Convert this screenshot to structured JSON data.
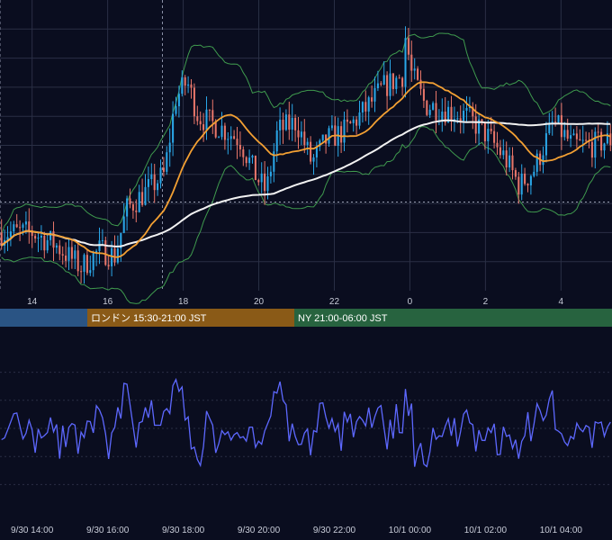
{
  "colors": {
    "background": "#0a0d1f",
    "grid": "#2a2f45",
    "candle_up": "#2aa7e8",
    "candle_down": "#e8766a",
    "ma_short": "#f3a033",
    "ma_long": "#f2f2f2",
    "bollinger": "#3f9a4e",
    "oscillator": "#5d68ff",
    "session_tokyo": "#2a5484",
    "session_london": "#8a5a17",
    "session_ny": "#27633f"
  },
  "sessions": [
    {
      "name": "tokyo",
      "label": ""
    },
    {
      "name": "london",
      "label": "ロンドン 15:30-21:00 JST"
    },
    {
      "name": "ny",
      "label": "NY 21:00-06:00 JST"
    }
  ],
  "chart_data": [
    {
      "type": "candlestick",
      "panel": "price",
      "x_tick_labels": [
        "14",
        "16",
        "18",
        "20",
        "22",
        "0",
        "2",
        "4"
      ],
      "x_tick_hours": [
        14,
        16,
        18,
        20,
        22,
        24,
        26,
        28
      ],
      "x_range_hours": [
        13.15,
        29.35
      ],
      "y_range": [
        0,
        100
      ],
      "reference_line_level": 30.5,
      "vertical_markers_hours": [
        13.15,
        17.45
      ],
      "series": [
        {
          "name": "",
          "kind": "ohlc"
        },
        {
          "name": "",
          "kind": "ma_short"
        },
        {
          "name": "",
          "kind": "ma_long"
        },
        {
          "name": "",
          "kind": "bollinger_upper"
        },
        {
          "name": "",
          "kind": "bollinger_lower"
        }
      ]
    },
    {
      "type": "line",
      "panel": "oscillator",
      "x_tick_labels": [
        "9/30 14:00",
        "9/30 16:00",
        "9/30 18:00",
        "9/30 20:00",
        "9/30 22:00",
        "10/1 00:00",
        "10/1 02:00",
        "10/1 04:00"
      ],
      "x_range_hours": [
        13.15,
        29.35
      ],
      "y_range": [
        0,
        100
      ],
      "series": [
        {
          "name": "",
          "kind": "oscillator"
        }
      ]
    }
  ]
}
